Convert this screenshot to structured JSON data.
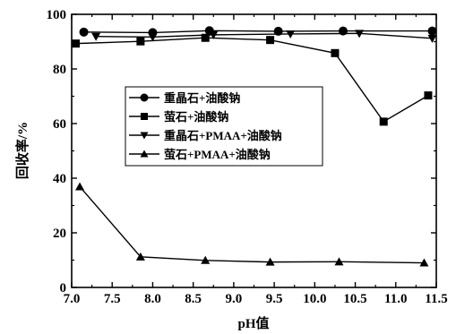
{
  "chart_data": {
    "type": "line",
    "xlabel": "pH值",
    "ylabel": "回收率/%",
    "xlim": [
      7.0,
      11.5
    ],
    "ylim": [
      0,
      100
    ],
    "xticks": [
      "7.0",
      "7.5",
      "8.0",
      "8.5",
      "9.0",
      "9.5",
      "10.0",
      "10.5",
      "11.0",
      "11.5"
    ],
    "yticks": [
      "0",
      "20",
      "40",
      "60",
      "80",
      "100"
    ],
    "grid": false,
    "legend_position": "center-left",
    "series": [
      {
        "name": "重晶石+油酸钠",
        "marker": "circle",
        "x": [
          7.15,
          8.0,
          8.7,
          9.55,
          10.35,
          11.45
        ],
        "y": [
          93.5,
          93.3,
          94.0,
          93.8,
          93.9,
          93.9
        ]
      },
      {
        "name": "萤石+油酸钠",
        "marker": "square",
        "x": [
          7.05,
          7.85,
          8.65,
          9.45,
          10.25,
          10.85,
          11.4
        ],
        "y": [
          89.3,
          90.1,
          91.4,
          90.6,
          85.8,
          60.7,
          70.3
        ]
      },
      {
        "name": "重晶石+PMAA+油酸钠",
        "marker": "triangle-down",
        "x": [
          7.3,
          8.0,
          8.75,
          9.7,
          10.55,
          11.45
        ],
        "y": [
          91.9,
          91.7,
          92.5,
          92.8,
          93.0,
          91.2
        ]
      },
      {
        "name": "萤石+PMAA+油酸钠",
        "marker": "triangle-up",
        "x": [
          7.1,
          7.85,
          8.65,
          9.45,
          10.3,
          11.35
        ],
        "y": [
          36.9,
          11.2,
          9.9,
          9.3,
          9.4,
          9.0
        ]
      }
    ]
  }
}
